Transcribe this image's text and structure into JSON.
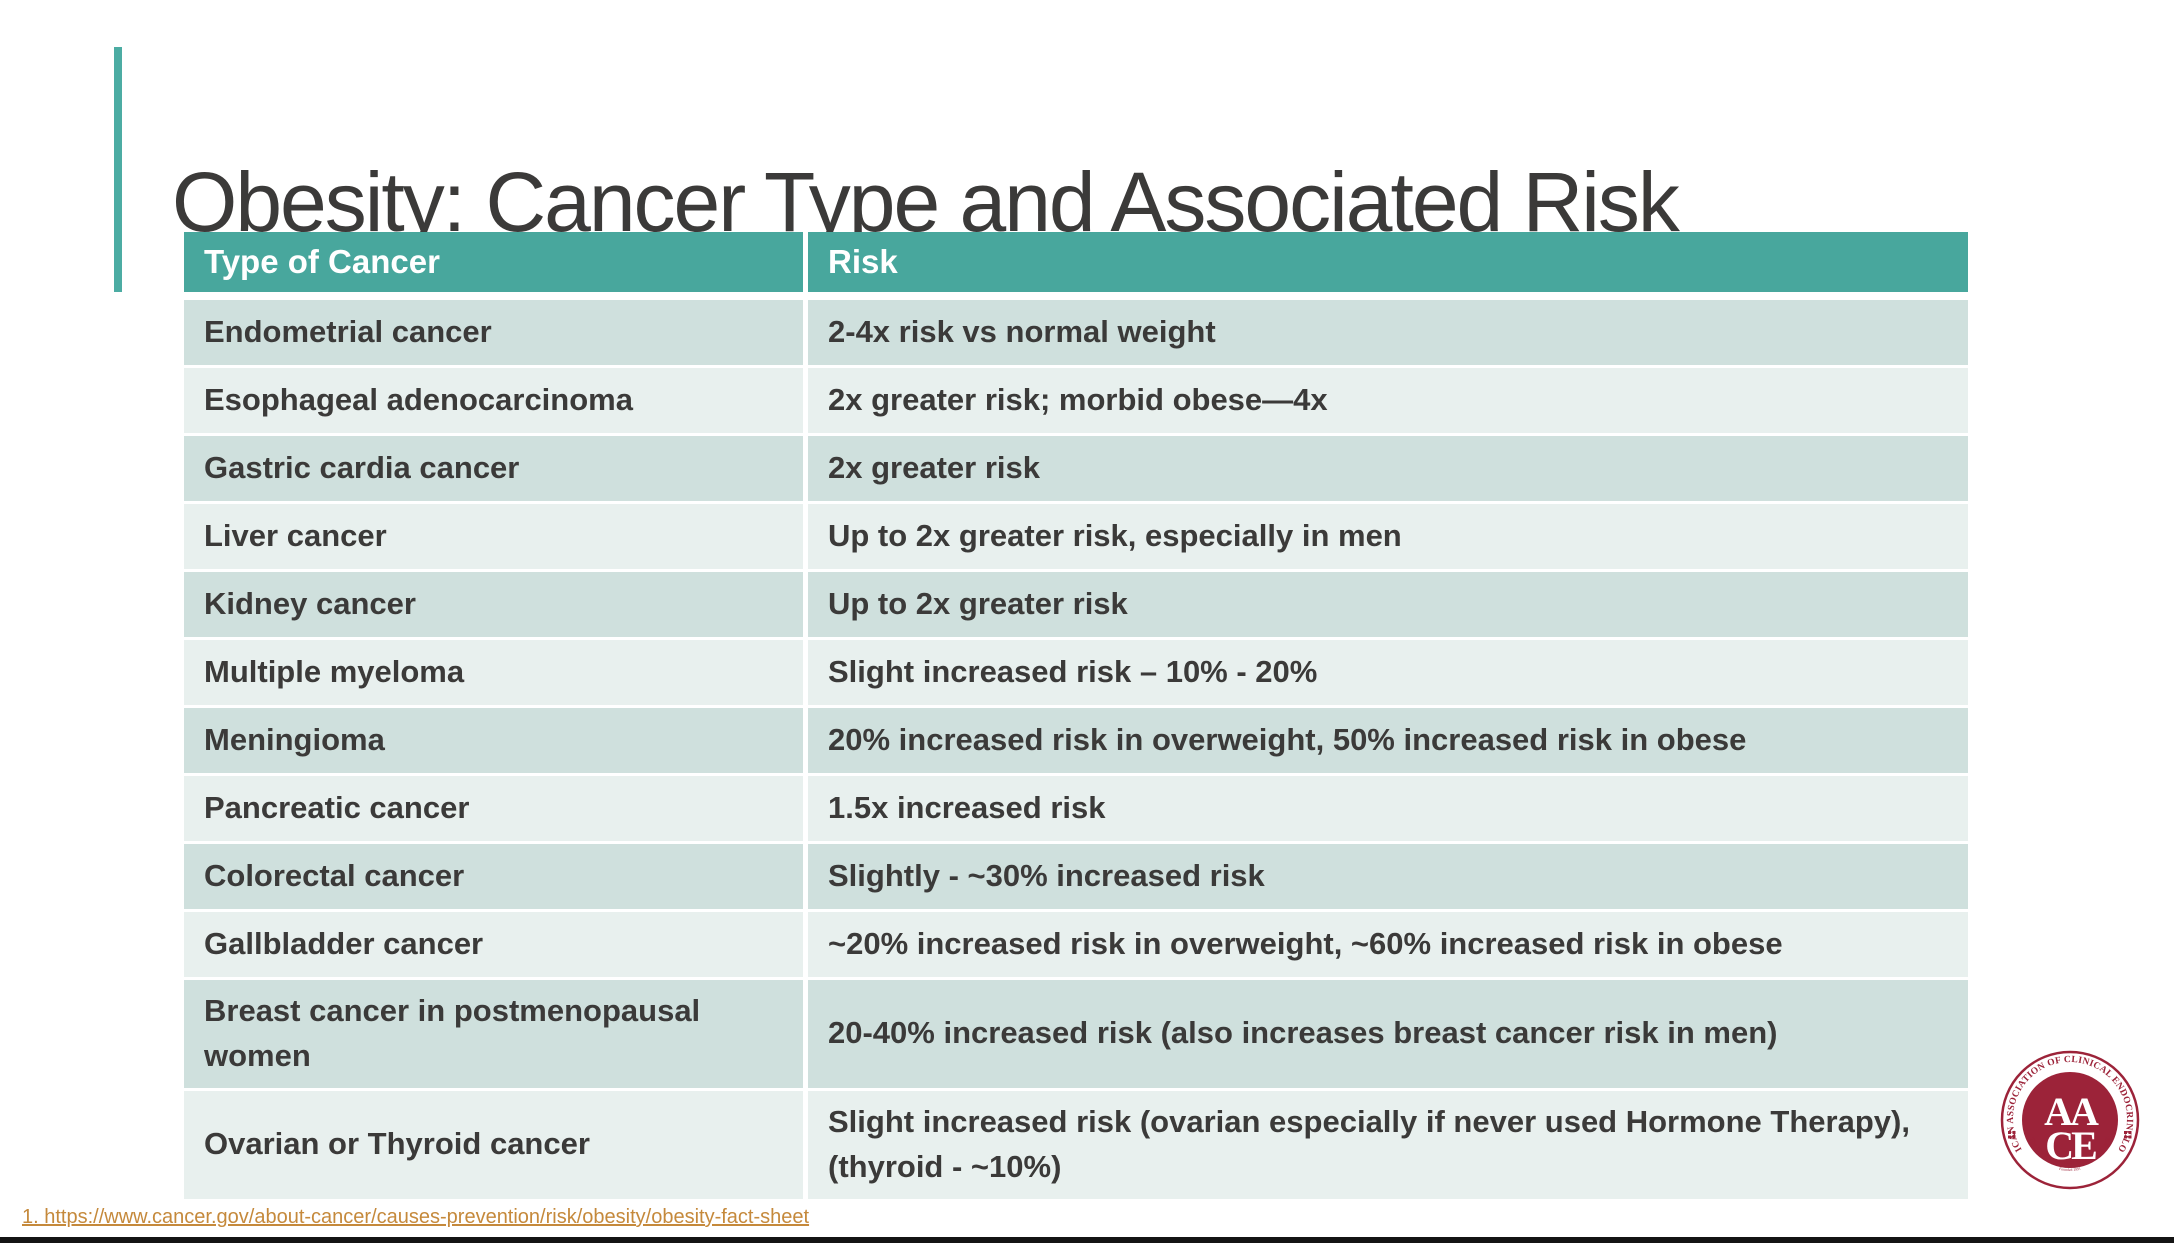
{
  "slide": {
    "title": "Obesity: Cancer Type and Associated Risk",
    "table": {
      "headers": [
        "Type of Cancer",
        "Risk"
      ],
      "rows": [
        {
          "type": "Endometrial cancer",
          "risk": "2-4x risk vs normal weight"
        },
        {
          "type": "Esophageal adenocarcinoma",
          "risk": "2x greater risk; morbid obese—4x"
        },
        {
          "type": "Gastric cardia cancer",
          "risk": "2x greater risk"
        },
        {
          "type": "Liver cancer",
          "risk": "Up to 2x greater risk, especially in men"
        },
        {
          "type": "Kidney cancer",
          "risk": "Up to 2x greater risk"
        },
        {
          "type": "Multiple myeloma",
          "risk": "Slight increased risk – 10% - 20%"
        },
        {
          "type": "Meningioma",
          "risk": "20% increased risk in overweight, 50% increased risk in obese"
        },
        {
          "type": "Pancreatic cancer",
          "risk": "1.5x increased risk"
        },
        {
          "type": "Colorectal cancer",
          "risk": "Slightly - ~30% increased risk"
        },
        {
          "type": "Gallbladder cancer",
          "risk": "~20% increased risk in overweight, ~60% increased risk in obese"
        },
        {
          "type": "Breast cancer in postmenopausal women",
          "risk": "20-40% increased risk (also increases breast cancer risk in men)"
        },
        {
          "type": "Ovarian or Thyroid cancer",
          "risk": "Slight increased risk (ovarian especially if never used Hormone Therapy), (thyroid - ~10%)"
        }
      ]
    },
    "footnote": {
      "label": "1. https://www.cancer.gov/about-cancer/causes-prevention/risk/obesity/obesity-fact-sheet"
    },
    "logo": {
      "top_text": "AMERICAN ASSOCIATION OF CLINICAL ENDOCRINOLOGISTS",
      "center_line1": "AA",
      "center_line2": "CE",
      "bottom_text": "The Voice of Clinical Endocrinology®",
      "founded_text": "Founded 1991"
    }
  },
  "theme": {
    "teal": "#48A79D",
    "teal-bar": "#4CACA3",
    "row-dark": "#CFE0DD",
    "row-light": "#E8F0EE",
    "text-dark": "#3B3A39",
    "header-text": "#FFFFFF",
    "link": "#C5893B",
    "maroon": "#9C2339",
    "bar-black": "#141414",
    "page-bg": "#FFFFFF"
  }
}
